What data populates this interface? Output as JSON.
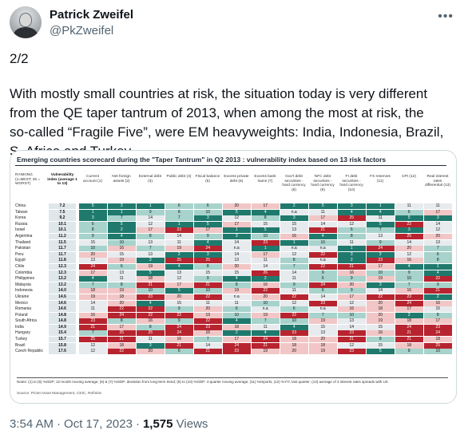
{
  "author": {
    "name": "Patrick Zweifel",
    "handle": "@PkZweifel"
  },
  "tweet": {
    "line1": "2/2",
    "line2": "With mostly small countries at risk, the situation today is very different",
    "line3": "from the QE taper tantrum of 2013, when among the most at risk, the",
    "line4": "so-called “Fragile Five”, were EM heavyweights: India, Indonesia, Brazil,",
    "line5": "S. Africa and Turkey"
  },
  "figure": {
    "title": "Emerging countries scorecard during the \"Taper Tantrum\" in Q2 2013 : vulnerability index based on 13 risk factors",
    "columns": [
      "RANKING (1=BEST; 25 = WORST)",
      "Vulnerability index (average 1 to 13)",
      "Current account (1)",
      "Net foreign assets (2)",
      "External debt (3)",
      "Public debt (4)",
      "Fiscal balance (5)",
      "Excess private debt (6)",
      "Excess bank loans (7)",
      "Gov't debt securities - hard currency (8)",
      "NFC debt securities - hard currency (9)",
      "FI debt securities - hard currency (10)",
      "FX reserves (11)",
      "CPI (12)",
      "Real interest rates differential (13)"
    ],
    "rows": [
      {
        "country": "China",
        "vi": "7.2",
        "v": [
          "5",
          "3",
          "1",
          "6",
          "6",
          "20",
          "17",
          "2",
          "5",
          "3",
          "1",
          "11",
          "11"
        ]
      },
      {
        "country": "Taiwan",
        "vi": "7.5",
        "v": [
          "1",
          "1",
          "9",
          "8",
          "10",
          "5",
          "4",
          "n.a",
          "11",
          "4",
          "4",
          "6",
          "17"
        ]
      },
      {
        "country": "Korea",
        "vi": "9.2",
        "v": [
          "3",
          "7",
          "14",
          "7",
          "3",
          "12",
          "8",
          "3",
          "17",
          "25",
          "11",
          "5",
          "3"
        ]
      },
      {
        "country": "Russia",
        "vi": "10.1",
        "v": [
          "6",
          "5",
          "12",
          "1",
          "5",
          "17",
          "15",
          "15",
          "14",
          "12",
          "5",
          "22",
          "14"
        ]
      },
      {
        "country": "Israel",
        "vi": "10.1",
        "v": [
          "8",
          "2",
          "17",
          "23",
          "17",
          "1",
          "5",
          "13",
          "21",
          "6",
          "7",
          "3",
          "12"
        ]
      },
      {
        "country": "Argentina",
        "vi": "11.2",
        "v": [
          "9",
          "4",
          "8",
          "14",
          "9",
          "3",
          "10",
          "16",
          "4",
          "8",
          "13",
          "25",
          "20"
        ]
      },
      {
        "country": "Thailand",
        "vi": "11.5",
        "v": [
          "15",
          "10",
          "13",
          "11",
          "4",
          "14",
          "23",
          "1",
          "10",
          "11",
          "9",
          "14",
          "13"
        ]
      },
      {
        "country": "Pakistan",
        "vi": "11.7",
        "v": [
          "10",
          "16",
          "7",
          "19",
          "24",
          "n.a",
          "1",
          "n.a",
          "n.a",
          "1",
          "24",
          "20",
          "7"
        ]
      },
      {
        "country": "Peru",
        "vi": "11.7",
        "v": [
          "20",
          "15",
          "13",
          "2",
          "3",
          "14",
          "17",
          "12",
          "22",
          "3",
          "2",
          "12",
          "6"
        ]
      },
      {
        "country": "Egypt",
        "vi": "11.8",
        "v": [
          "13",
          "19",
          "3",
          "25",
          "25",
          "13",
          "11",
          "8",
          "n.a",
          "2",
          "23",
          "16",
          "8"
        ]
      },
      {
        "country": "Chile",
        "vi": "12.3",
        "v": [
          "24",
          "6",
          "19",
          "4",
          "8",
          "20",
          "14",
          "7",
          "22",
          "21",
          "17",
          "4",
          "1"
        ]
      },
      {
        "country": "Colombia",
        "vi": "12.3",
        "v": [
          "17",
          "13",
          "5",
          "13",
          "15",
          "15",
          "26",
          "14",
          "9",
          "16",
          "10",
          "9",
          "4"
        ]
      },
      {
        "country": "Philippines",
        "vi": "13.2",
        "v": [
          "4",
          "11",
          "18",
          "12",
          "9",
          "4",
          "2",
          "11",
          "6",
          "9",
          "19",
          "10",
          "22"
        ]
      },
      {
        "country": "Malaysia",
        "vi": "13.2",
        "v": [
          "7",
          "8",
          "21",
          "17",
          "21",
          "8",
          "16",
          "9",
          "24",
          "20",
          "3",
          "7",
          "9"
        ]
      },
      {
        "country": "Indonesia",
        "vi": "14.0",
        "v": [
          "18",
          "19",
          "10",
          "5",
          "10",
          "19",
          "22",
          "11",
          "6",
          "9",
          "14",
          "16",
          "21"
        ]
      },
      {
        "country": "Ukraine",
        "vi": "14.6",
        "v": [
          "19",
          "18",
          "23",
          "20",
          "22",
          "n.a",
          "20",
          "22",
          "14",
          "17",
          "22",
          "23",
          "2"
        ]
      },
      {
        "country": "Mexico",
        "vi": "14.6",
        "v": [
          "14",
          "20",
          "4",
          "15",
          "11",
          "11",
          "10",
          "12",
          "23",
          "12",
          "20",
          "24",
          "16"
        ]
      },
      {
        "country": "Romania",
        "vi": "14.6",
        "v": [
          "11",
          "22",
          "22",
          "9",
          "20",
          "6",
          "n.a",
          "6",
          "n.a",
          "16",
          "18",
          "17",
          "15"
        ]
      },
      {
        "country": "Poland",
        "vi": "14.8",
        "v": [
          "16",
          "24",
          "22",
          "22",
          "19",
          "10",
          "19",
          "22",
          "7",
          "10",
          "20",
          "2",
          "8"
        ]
      },
      {
        "country": "South Africa",
        "vi": "14.8",
        "v": [
          "23",
          "8",
          "16",
          "9",
          "22",
          "4",
          "7",
          "10",
          "19",
          "13",
          "19",
          "18",
          "17"
        ]
      },
      {
        "country": "India",
        "vi": "14.9",
        "v": [
          "21",
          "17",
          "8",
          "24",
          "23",
          "18",
          "11",
          "4",
          "15",
          "14",
          "15",
          "24",
          "23"
        ]
      },
      {
        "country": "Hungary",
        "vi": "15.4",
        "v": [
          "7",
          "25",
          "25",
          "24",
          "16",
          "2",
          "4",
          "23",
          "13",
          "23",
          "16",
          "21",
          "24"
        ]
      },
      {
        "country": "Turkey",
        "vi": "15.7",
        "v": [
          "25",
          "21",
          "11",
          "16",
          "7",
          "17",
          "24",
          "18",
          "20",
          "21",
          "8",
          "21",
          "18"
        ]
      },
      {
        "country": "Brazil",
        "vi": "15.8",
        "v": [
          "12",
          "18",
          "3",
          "21",
          "14",
          "24",
          "21",
          "18",
          "18",
          "12",
          "15",
          "18",
          "25"
        ]
      },
      {
        "country": "Czech Republic",
        "vi": "17.6",
        "v": [
          "12",
          "22",
          "20",
          "6",
          "21",
          "23",
          "19",
          "20",
          "19",
          "23",
          "5",
          "8",
          "10"
        ]
      }
    ],
    "notes": "Notes: (1) to (5) %GDP; 12-month moving average; (6) & (7) %GDP: deviation from long-term trend; (8) to (10) %GDP: 4-quarter moving average; (11) %imports; (12) %Y/Y, last quarter; (13) average of 3 interest rates spreads with US",
    "source": "Source: Pictet Asset Management, CEIC, Refinitiv"
  },
  "meta": {
    "time": "3:54 AM",
    "date": "Oct 17, 2023",
    "views": "1,575",
    "views_label": "Views"
  },
  "colors": {
    "green": "#1f7a6d",
    "lightgreen": "#a7d3cc",
    "pink": "#f2c6c6",
    "red": "#b7242f",
    "neutral": "#e7ebee"
  }
}
